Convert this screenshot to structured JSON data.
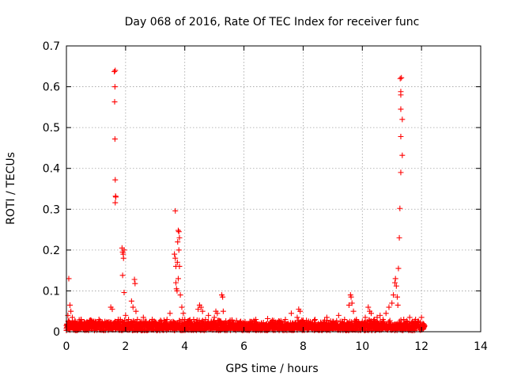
{
  "chart_data": {
    "type": "scatter",
    "title": "Day 068 of 2016, Rate Of TEC Index for receiver func",
    "xlabel": "GPS time / hours",
    "ylabel": "ROTI / TECUs",
    "xlim": [
      0,
      14
    ],
    "ylim": [
      0,
      0.7
    ],
    "xticks": [
      0,
      2,
      4,
      6,
      8,
      10,
      12,
      14
    ],
    "yticks": [
      0,
      0.1,
      0.2,
      0.3,
      0.4,
      0.5,
      0.6,
      0.7
    ],
    "ytick_labels": [
      "0",
      "0.1",
      "0.2",
      "0.3",
      "0.4",
      "0.5",
      "0.6",
      "0.7"
    ],
    "grid": true,
    "marker": "+",
    "series": [
      {
        "name": "ROTI",
        "color": "#ff0000",
        "points": [
          [
            0.0,
            0.015
          ],
          [
            0.05,
            0.04
          ],
          [
            0.08,
            0.13
          ],
          [
            0.12,
            0.065
          ],
          [
            0.15,
            0.05
          ],
          [
            0.2,
            0.035
          ],
          [
            0.3,
            0.025
          ],
          [
            0.4,
            0.018
          ],
          [
            0.5,
            0.03
          ],
          [
            0.6,
            0.012
          ],
          [
            0.7,
            0.02
          ],
          [
            0.8,
            0.028
          ],
          [
            0.9,
            0.015
          ],
          [
            1.0,
            0.022
          ],
          [
            1.1,
            0.03
          ],
          [
            1.2,
            0.018
          ],
          [
            1.3,
            0.025
          ],
          [
            1.4,
            0.02
          ],
          [
            1.5,
            0.06
          ],
          [
            1.55,
            0.055
          ],
          [
            1.62,
            0.637
          ],
          [
            1.65,
            0.64
          ],
          [
            1.64,
            0.6
          ],
          [
            1.63,
            0.563
          ],
          [
            1.64,
            0.472
          ],
          [
            1.65,
            0.372
          ],
          [
            1.66,
            0.332
          ],
          [
            1.67,
            0.33
          ],
          [
            1.65,
            0.316
          ],
          [
            1.75,
            0.03
          ],
          [
            1.82,
            0.03
          ],
          [
            1.88,
            0.205
          ],
          [
            1.9,
            0.195
          ],
          [
            1.92,
            0.19
          ],
          [
            1.95,
            0.2
          ],
          [
            1.93,
            0.18
          ],
          [
            1.9,
            0.138
          ],
          [
            1.95,
            0.096
          ],
          [
            2.0,
            0.04
          ],
          [
            2.1,
            0.03
          ],
          [
            2.2,
            0.075
          ],
          [
            2.25,
            0.06
          ],
          [
            2.3,
            0.128
          ],
          [
            2.32,
            0.118
          ],
          [
            2.35,
            0.05
          ],
          [
            2.4,
            0.03
          ],
          [
            2.5,
            0.02
          ],
          [
            2.6,
            0.035
          ],
          [
            2.7,
            0.025
          ],
          [
            2.8,
            0.018
          ],
          [
            2.9,
            0.03
          ],
          [
            3.0,
            0.022
          ],
          [
            3.1,
            0.015
          ],
          [
            3.2,
            0.025
          ],
          [
            3.3,
            0.02
          ],
          [
            3.4,
            0.03
          ],
          [
            3.5,
            0.045
          ],
          [
            3.68,
            0.296
          ],
          [
            3.65,
            0.19
          ],
          [
            3.68,
            0.18
          ],
          [
            3.7,
            0.16
          ],
          [
            3.72,
            0.105
          ],
          [
            3.74,
            0.1
          ],
          [
            3.7,
            0.12
          ],
          [
            3.75,
            0.17
          ],
          [
            3.76,
            0.22
          ],
          [
            3.78,
            0.248
          ],
          [
            3.8,
            0.245
          ],
          [
            3.82,
            0.23
          ],
          [
            3.8,
            0.2
          ],
          [
            3.82,
            0.16
          ],
          [
            3.78,
            0.13
          ],
          [
            3.85,
            0.09
          ],
          [
            3.9,
            0.06
          ],
          [
            3.95,
            0.045
          ],
          [
            4.0,
            0.03
          ],
          [
            4.1,
            0.025
          ],
          [
            4.2,
            0.018
          ],
          [
            4.3,
            0.03
          ],
          [
            4.45,
            0.055
          ],
          [
            4.5,
            0.065
          ],
          [
            4.55,
            0.06
          ],
          [
            4.6,
            0.05
          ],
          [
            4.7,
            0.03
          ],
          [
            4.8,
            0.04
          ],
          [
            4.9,
            0.025
          ],
          [
            5.0,
            0.035
          ],
          [
            5.05,
            0.05
          ],
          [
            5.1,
            0.045
          ],
          [
            5.25,
            0.09
          ],
          [
            5.28,
            0.085
          ],
          [
            5.3,
            0.05
          ],
          [
            5.4,
            0.02
          ],
          [
            5.6,
            0.028
          ],
          [
            5.8,
            0.015
          ],
          [
            6.0,
            0.02
          ],
          [
            6.2,
            0.025
          ],
          [
            6.4,
            0.03
          ],
          [
            6.6,
            0.02
          ],
          [
            6.8,
            0.032
          ],
          [
            7.0,
            0.018
          ],
          [
            7.2,
            0.025
          ],
          [
            7.4,
            0.03
          ],
          [
            7.6,
            0.045
          ],
          [
            7.8,
            0.035
          ],
          [
            7.85,
            0.055
          ],
          [
            7.9,
            0.05
          ],
          [
            8.0,
            0.028
          ],
          [
            8.2,
            0.02
          ],
          [
            8.4,
            0.03
          ],
          [
            8.6,
            0.018
          ],
          [
            8.8,
            0.035
          ],
          [
            9.0,
            0.025
          ],
          [
            9.2,
            0.04
          ],
          [
            9.4,
            0.03
          ],
          [
            9.55,
            0.065
          ],
          [
            9.6,
            0.09
          ],
          [
            9.62,
            0.085
          ],
          [
            9.65,
            0.07
          ],
          [
            9.7,
            0.05
          ],
          [
            9.8,
            0.03
          ],
          [
            9.9,
            0.02
          ],
          [
            10.0,
            0.025
          ],
          [
            10.1,
            0.035
          ],
          [
            10.2,
            0.06
          ],
          [
            10.25,
            0.05
          ],
          [
            10.3,
            0.045
          ],
          [
            10.4,
            0.03
          ],
          [
            10.5,
            0.035
          ],
          [
            10.6,
            0.04
          ],
          [
            10.7,
            0.03
          ],
          [
            10.8,
            0.045
          ],
          [
            10.9,
            0.06
          ],
          [
            11.0,
            0.07
          ],
          [
            11.05,
            0.09
          ],
          [
            11.1,
            0.12
          ],
          [
            11.12,
            0.13
          ],
          [
            11.15,
            0.112
          ],
          [
            11.18,
            0.085
          ],
          [
            11.2,
            0.065
          ],
          [
            11.22,
            0.155
          ],
          [
            11.25,
            0.23
          ],
          [
            11.27,
            0.302
          ],
          [
            11.3,
            0.39
          ],
          [
            11.3,
            0.478
          ],
          [
            11.3,
            0.545
          ],
          [
            11.3,
            0.58
          ],
          [
            11.3,
            0.588
          ],
          [
            11.28,
            0.62
          ],
          [
            11.32,
            0.622
          ],
          [
            11.35,
            0.52
          ],
          [
            11.35,
            0.432
          ],
          [
            11.4,
            0.03
          ],
          [
            11.5,
            0.025
          ],
          [
            11.6,
            0.035
          ],
          [
            11.7,
            0.02
          ],
          [
            11.8,
            0.03
          ],
          [
            11.9,
            0.025
          ],
          [
            12.0,
            0.035
          ],
          [
            12.05,
            0.02
          ],
          [
            12.1,
            0.015
          ]
        ]
      }
    ],
    "baseline_band": {
      "x_start": 0.0,
      "x_end": 12.1,
      "y_min": 0.003,
      "y_max": 0.03
    }
  }
}
